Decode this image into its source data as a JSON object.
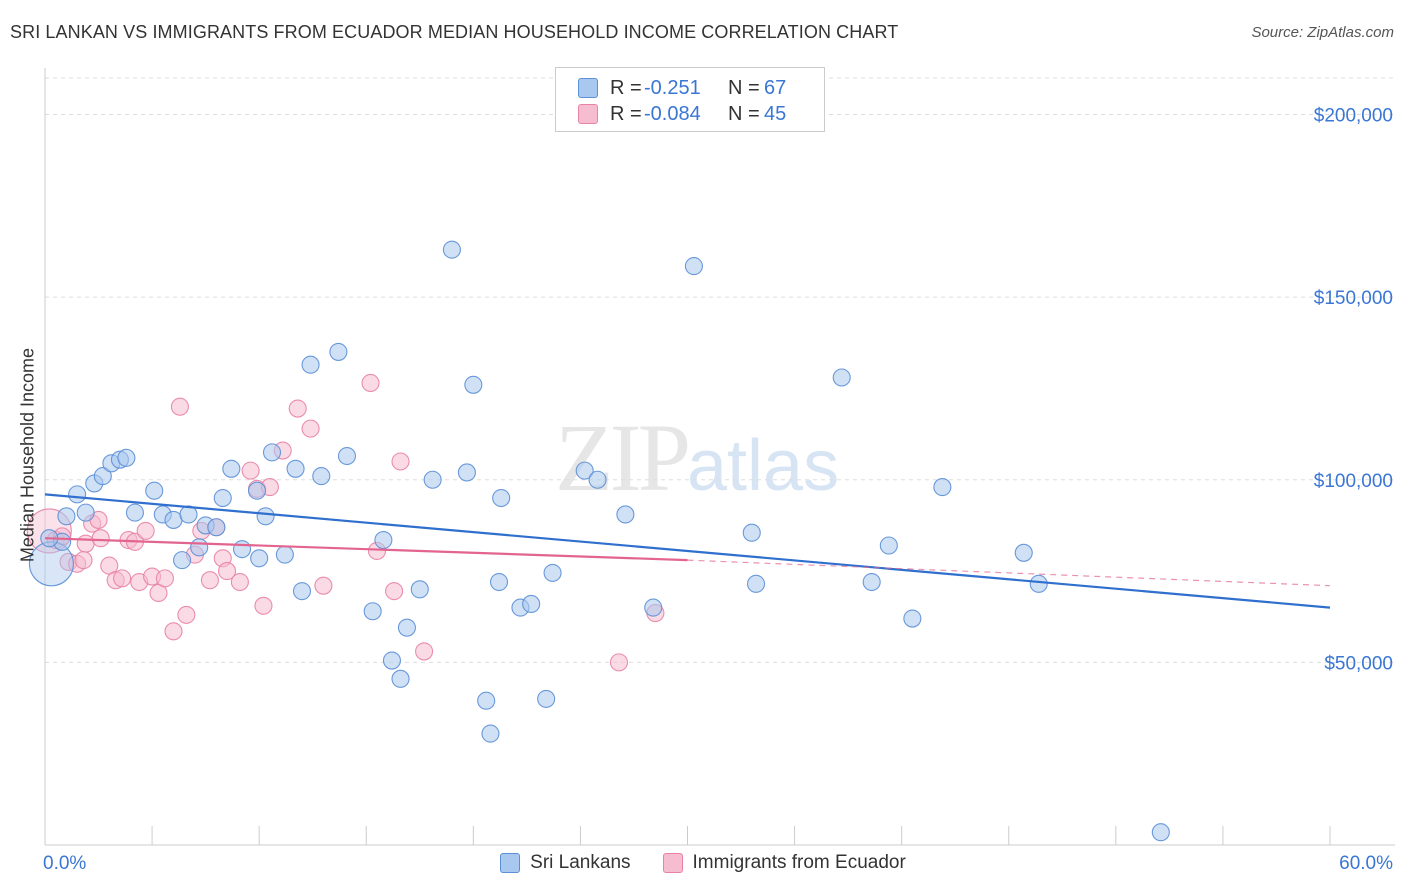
{
  "title": "SRI LANKAN VS IMMIGRANTS FROM ECUADOR MEDIAN HOUSEHOLD INCOME CORRELATION CHART",
  "source": "Source: ZipAtlas.com",
  "watermark": {
    "zip": "ZIP",
    "atlas": "atlas"
  },
  "legend": {
    "rows": [
      {
        "r_label": "R =",
        "r_value": "-0.251",
        "n_label": "N =",
        "n_value": "67"
      },
      {
        "r_label": "R =",
        "r_value": "-0.084",
        "n_label": "N =",
        "n_value": "45"
      }
    ]
  },
  "bottom_legend": {
    "series1": "Sri Lankans",
    "series2": "Immigrants from Ecuador"
  },
  "colors": {
    "blue_fill": "#a9c8ef",
    "blue_stroke": "#5b8fd6",
    "blue_line": "#2f6fce",
    "pink_fill": "#f6bcd0",
    "pink_stroke": "#e882a6",
    "pink_line": "#e2648f",
    "axis_text": "#3a76d4",
    "grid": "#dddddd"
  },
  "chart_data": {
    "type": "scatter",
    "title": "SRI LANKAN VS IMMIGRANTS FROM ECUADOR MEDIAN HOUSEHOLD INCOME CORRELATION CHART",
    "xlabel": "",
    "ylabel": "Median Household Income",
    "xlim": [
      0,
      60
    ],
    "ylim": [
      0,
      210000
    ],
    "x_tick_labels": [
      "0.0%",
      "60.0%"
    ],
    "y_ticks": [
      50000,
      100000,
      150000,
      200000
    ],
    "y_tick_labels": [
      "$50,000",
      "$100,000",
      "$150,000",
      "$200,000"
    ],
    "grid": true,
    "legend_position": "top-center",
    "series": [
      {
        "name": "Sri Lankans",
        "r": -0.251,
        "n": 67,
        "trend": {
          "x": [
            0,
            60
          ],
          "y": [
            96000,
            65000
          ]
        },
        "points": [
          {
            "x": 0.3,
            "y": 77000,
            "big": true
          },
          {
            "x": 0.8,
            "y": 83000
          },
          {
            "x": 1.0,
            "y": 90000
          },
          {
            "x": 1.5,
            "y": 96000
          },
          {
            "x": 1.9,
            "y": 91000
          },
          {
            "x": 2.3,
            "y": 99000
          },
          {
            "x": 2.7,
            "y": 101000
          },
          {
            "x": 3.1,
            "y": 104500
          },
          {
            "x": 3.5,
            "y": 105500
          },
          {
            "x": 3.8,
            "y": 106000
          },
          {
            "x": 4.2,
            "y": 91000
          },
          {
            "x": 5.1,
            "y": 97000
          },
          {
            "x": 5.5,
            "y": 90500
          },
          {
            "x": 6.0,
            "y": 89000
          },
          {
            "x": 6.4,
            "y": 78000
          },
          {
            "x": 6.7,
            "y": 90500
          },
          {
            "x": 7.2,
            "y": 81500
          },
          {
            "x": 7.5,
            "y": 87500
          },
          {
            "x": 8.0,
            "y": 87000
          },
          {
            "x": 8.3,
            "y": 95000
          },
          {
            "x": 8.7,
            "y": 103000
          },
          {
            "x": 9.2,
            "y": 81000
          },
          {
            "x": 9.9,
            "y": 97000
          },
          {
            "x": 10.0,
            "y": 78500
          },
          {
            "x": 10.3,
            "y": 90000
          },
          {
            "x": 10.6,
            "y": 107500
          },
          {
            "x": 11.2,
            "y": 79500
          },
          {
            "x": 11.7,
            "y": 103000
          },
          {
            "x": 12.0,
            "y": 69500
          },
          {
            "x": 12.4,
            "y": 131500
          },
          {
            "x": 12.9,
            "y": 101000
          },
          {
            "x": 13.7,
            "y": 135000
          },
          {
            "x": 14.1,
            "y": 106500
          },
          {
            "x": 15.3,
            "y": 64000
          },
          {
            "x": 15.8,
            "y": 83500
          },
          {
            "x": 16.2,
            "y": 50500
          },
          {
            "x": 16.6,
            "y": 45500
          },
          {
            "x": 16.9,
            "y": 59500
          },
          {
            "x": 17.5,
            "y": 70000
          },
          {
            "x": 18.1,
            "y": 100000
          },
          {
            "x": 19.0,
            "y": 163000
          },
          {
            "x": 19.7,
            "y": 102000
          },
          {
            "x": 20.0,
            "y": 126000
          },
          {
            "x": 20.6,
            "y": 39500
          },
          {
            "x": 20.8,
            "y": 30500
          },
          {
            "x": 21.2,
            "y": 72000
          },
          {
            "x": 21.3,
            "y": 95000
          },
          {
            "x": 22.2,
            "y": 65000
          },
          {
            "x": 22.7,
            "y": 66000
          },
          {
            "x": 23.4,
            "y": 40000
          },
          {
            "x": 23.7,
            "y": 74500
          },
          {
            "x": 25.2,
            "y": 102500
          },
          {
            "x": 25.8,
            "y": 100000
          },
          {
            "x": 27.1,
            "y": 90500
          },
          {
            "x": 28.4,
            "y": 65000
          },
          {
            "x": 30.3,
            "y": 158500
          },
          {
            "x": 33.0,
            "y": 85500
          },
          {
            "x": 33.2,
            "y": 71500
          },
          {
            "x": 37.2,
            "y": 128000
          },
          {
            "x": 38.6,
            "y": 72000
          },
          {
            "x": 39.4,
            "y": 82000
          },
          {
            "x": 40.5,
            "y": 62000
          },
          {
            "x": 41.9,
            "y": 98000
          },
          {
            "x": 45.7,
            "y": 80000
          },
          {
            "x": 46.4,
            "y": 71500
          },
          {
            "x": 52.1,
            "y": 3500
          },
          {
            "x": 0.2,
            "y": 84000
          }
        ]
      },
      {
        "name": "Immigrants from Ecuador",
        "r": -0.084,
        "n": 45,
        "trend": {
          "x": [
            0,
            30
          ],
          "y": [
            84000,
            78000
          ]
        },
        "trend_dashed": {
          "x": [
            30,
            60
          ],
          "y": [
            78000,
            71000
          ]
        },
        "points": [
          {
            "x": 0.2,
            "y": 86000,
            "big": true
          },
          {
            "x": 0.5,
            "y": 83500
          },
          {
            "x": 0.8,
            "y": 84500
          },
          {
            "x": 1.1,
            "y": 77500
          },
          {
            "x": 1.5,
            "y": 77000
          },
          {
            "x": 1.9,
            "y": 82500
          },
          {
            "x": 2.2,
            "y": 88000
          },
          {
            "x": 2.5,
            "y": 89000
          },
          {
            "x": 2.6,
            "y": 84000
          },
          {
            "x": 3.0,
            "y": 76500
          },
          {
            "x": 3.3,
            "y": 72500
          },
          {
            "x": 3.6,
            "y": 73000
          },
          {
            "x": 3.9,
            "y": 83500
          },
          {
            "x": 4.2,
            "y": 83000
          },
          {
            "x": 4.4,
            "y": 72000
          },
          {
            "x": 4.7,
            "y": 86000
          },
          {
            "x": 5.0,
            "y": 73500
          },
          {
            "x": 5.3,
            "y": 69000
          },
          {
            "x": 5.6,
            "y": 73000
          },
          {
            "x": 6.0,
            "y": 58500
          },
          {
            "x": 6.3,
            "y": 120000
          },
          {
            "x": 6.6,
            "y": 63000
          },
          {
            "x": 7.0,
            "y": 79500
          },
          {
            "x": 7.3,
            "y": 86000
          },
          {
            "x": 7.7,
            "y": 72500
          },
          {
            "x": 8.0,
            "y": 87000
          },
          {
            "x": 8.3,
            "y": 78500
          },
          {
            "x": 8.5,
            "y": 75000
          },
          {
            "x": 9.1,
            "y": 72000
          },
          {
            "x": 9.6,
            "y": 102500
          },
          {
            "x": 9.9,
            "y": 97500
          },
          {
            "x": 10.2,
            "y": 65500
          },
          {
            "x": 10.5,
            "y": 98000
          },
          {
            "x": 11.1,
            "y": 108000
          },
          {
            "x": 11.8,
            "y": 119500
          },
          {
            "x": 12.4,
            "y": 114000
          },
          {
            "x": 13.0,
            "y": 71000
          },
          {
            "x": 15.2,
            "y": 126500
          },
          {
            "x": 15.5,
            "y": 80500
          },
          {
            "x": 16.3,
            "y": 69500
          },
          {
            "x": 16.6,
            "y": 105000
          },
          {
            "x": 17.7,
            "y": 53000
          },
          {
            "x": 26.8,
            "y": 50000
          },
          {
            "x": 28.5,
            "y": 63500
          },
          {
            "x": 1.8,
            "y": 78000
          }
        ]
      }
    ]
  }
}
